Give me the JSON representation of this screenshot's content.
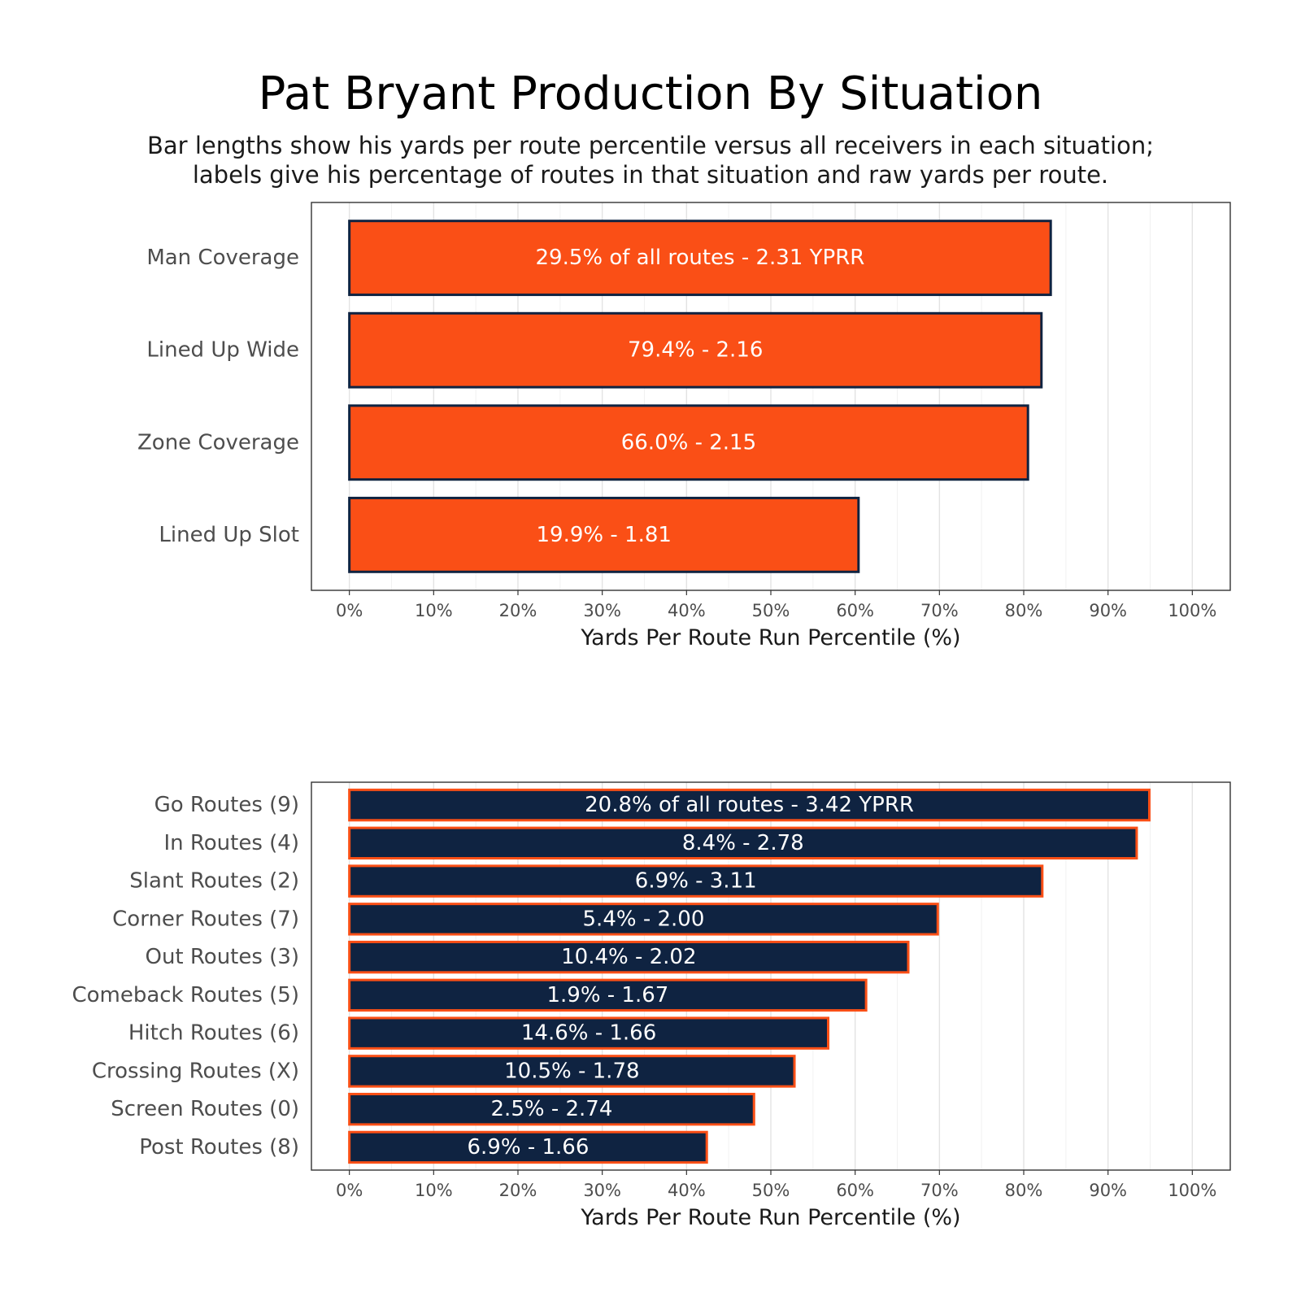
{
  "title": "Pat Bryant Production By Situation",
  "subtitle_lines": [
    "Bar lengths show his yards per route percentile versus all receivers in each situation;",
    "labels give his percentage of routes in that situation and raw yards per route."
  ],
  "chart_data": [
    {
      "type": "bar",
      "orientation": "horizontal",
      "categories": [
        "Man Coverage",
        "Lined Up Wide",
        "Zone Coverage",
        "Lined Up Slot"
      ],
      "values": [
        83.2,
        82.1,
        80.5,
        60.4
      ],
      "bar_labels": [
        "29.5% of all routes - 2.31 YPRR",
        "79.4% - 2.16",
        "66.0% - 2.15",
        "19.9% - 1.81"
      ],
      "xlabel": "Yards Per Route Run Percentile (%)",
      "xlim": [
        0,
        100
      ],
      "x_ticks": [
        0,
        10,
        20,
        30,
        40,
        50,
        60,
        70,
        80,
        90,
        100
      ],
      "x_tick_labels": [
        "0%",
        "10%",
        "20%",
        "30%",
        "40%",
        "50%",
        "60%",
        "70%",
        "80%",
        "90%",
        "100%"
      ],
      "grid": true,
      "bar_fill": "#fa4f16",
      "bar_stroke": "#0f2341"
    },
    {
      "type": "bar",
      "orientation": "horizontal",
      "categories": [
        "Go Routes (9)",
        "In Routes (4)",
        "Slant Routes (2)",
        "Corner Routes (7)",
        "Out Routes (3)",
        "Comeback Routes (5)",
        "Hitch Routes (6)",
        "Crossing Routes (X)",
        "Screen Routes (0)",
        "Post Routes (8)"
      ],
      "values": [
        94.9,
        93.4,
        82.2,
        69.8,
        66.3,
        61.3,
        56.8,
        52.8,
        48.0,
        42.4
      ],
      "bar_labels": [
        "20.8% of all routes - 3.42 YPRR",
        "8.4% - 2.78",
        "6.9% - 3.11",
        "5.4% - 2.00",
        "10.4% - 2.02",
        "1.9% - 1.67",
        "14.6% - 1.66",
        "10.5% - 1.78",
        "2.5% - 2.74",
        "6.9% - 1.66"
      ],
      "xlabel": "Yards Per Route Run Percentile (%)",
      "xlim": [
        0,
        100
      ],
      "x_ticks": [
        0,
        10,
        20,
        30,
        40,
        50,
        60,
        70,
        80,
        90,
        100
      ],
      "x_tick_labels": [
        "0%",
        "10%",
        "20%",
        "30%",
        "40%",
        "50%",
        "60%",
        "70%",
        "80%",
        "90%",
        "100%"
      ],
      "grid": true,
      "bar_fill": "#0f2341",
      "bar_stroke": "#fa4f16"
    }
  ]
}
